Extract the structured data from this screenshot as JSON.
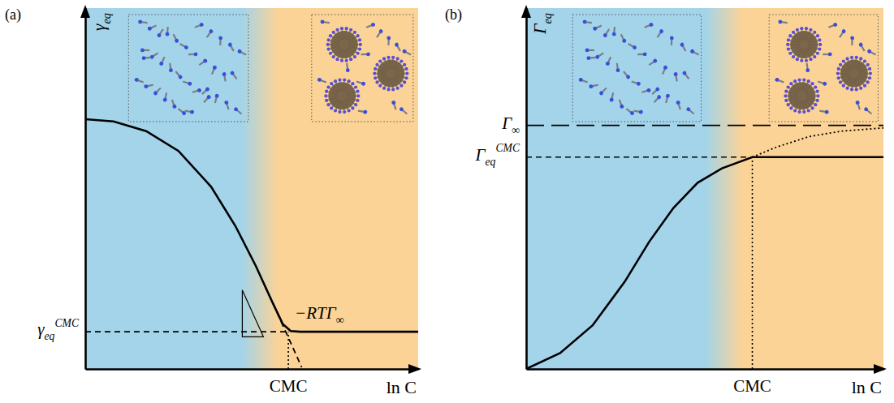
{
  "chart_data": [
    {
      "type": "line",
      "panel_label": "(a)",
      "x_label": "ln C",
      "y_label": {
        "base": "γ",
        "sub": "eq"
      },
      "xlim": [
        0,
        10
      ],
      "ylim": [
        0,
        10
      ],
      "tick_labels": false,
      "series": [
        {
          "x": [
            0,
            0.85,
            1.83,
            2.8,
            3.78,
            4.51,
            5.12,
            5.61,
            5.93,
            6.17,
            6.46,
            10
          ],
          "values": [
            6.92,
            6.86,
            6.59,
            6.04,
            5.05,
            3.96,
            2.86,
            1.87,
            1.25,
            1.05,
            1.03,
            1.03
          ],
          "color": "#000000",
          "line_style": "solid"
        },
        {
          "x": [
            5.4,
            6.5
          ],
          "values": [
            2.3,
            0.05
          ],
          "color": "#000000",
          "line_style": "dashed"
        }
      ],
      "reference_lines": [
        {
          "axis": "x",
          "value": 6.1,
          "label": "CMC",
          "line_style": "dotted"
        },
        {
          "axis": "y",
          "value": 1.03,
          "label": {
            "base": "γ",
            "sub": "eq",
            "sup": "CMC"
          },
          "line_style": "dashed"
        }
      ],
      "annotations": [
        {
          "text": {
            "base": "−RTΓ",
            "sub": "∞"
          }
        }
      ]
    },
    {
      "type": "line",
      "panel_label": "(b)",
      "x_label": "ln C",
      "y_label": {
        "base": "Γ",
        "sub": "eq"
      },
      "xlim": [
        0,
        10
      ],
      "ylim": [
        0,
        10
      ],
      "tick_labels": false,
      "series": [
        {
          "x": [
            0,
            0.95,
            1.86,
            2.76,
            3.44,
            4.12,
            4.8,
            5.48,
            6.33,
            10
          ],
          "values": [
            0,
            0.44,
            1.21,
            2.42,
            3.52,
            4.46,
            5.16,
            5.56,
            5.87,
            5.87
          ],
          "color": "#000000",
          "line_style": "solid"
        },
        {
          "x": [
            6.33,
            7.01,
            7.92,
            8.82,
            10
          ],
          "values": [
            5.87,
            6.15,
            6.44,
            6.59,
            6.68
          ],
          "color": "#000000",
          "line_style": "dotted"
        }
      ],
      "reference_lines": [
        {
          "axis": "x",
          "value": 6.33,
          "label": "CMC",
          "line_style": "dotted"
        },
        {
          "axis": "y",
          "value": 6.75,
          "label": {
            "base": "Γ",
            "sub": "∞"
          },
          "line_style": "dashed"
        },
        {
          "axis": "y",
          "value": 5.87,
          "label": {
            "base": "Γ",
            "sub": "eq",
            "sup": "CMC"
          },
          "line_style": "dashed"
        }
      ]
    }
  ]
}
